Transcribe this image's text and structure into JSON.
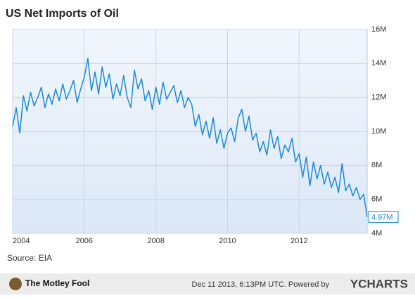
{
  "chart_data": {
    "type": "line",
    "title": "US Net Imports of Oil",
    "source": "Source: EIA",
    "footer": "Dec 11 2013, 6:13PM UTC. Powered by",
    "brand": "YCHARTS",
    "logo": "The Motley Fool",
    "color": "#1a8ad4",
    "grid": true,
    "x": [
      2004.0,
      2004.1,
      2004.2,
      2004.3,
      2004.4,
      2004.5,
      2004.6,
      2004.7,
      2004.8,
      2004.9,
      2005.0,
      2005.1,
      2005.2,
      2005.3,
      2005.4,
      2005.5,
      2005.6,
      2005.7,
      2005.8,
      2005.9,
      2006.0,
      2006.1,
      2006.2,
      2006.3,
      2006.4,
      2006.5,
      2006.6,
      2006.7,
      2006.8,
      2006.9,
      2007.0,
      2007.1,
      2007.2,
      2007.3,
      2007.4,
      2007.5,
      2007.6,
      2007.7,
      2007.8,
      2007.9,
      2008.0,
      2008.1,
      2008.2,
      2008.3,
      2008.4,
      2008.5,
      2008.6,
      2008.7,
      2008.8,
      2008.9,
      2009.0,
      2009.1,
      2009.2,
      2009.3,
      2009.4,
      2009.5,
      2009.6,
      2009.7,
      2009.8,
      2009.9,
      2010.0,
      2010.1,
      2010.2,
      2010.3,
      2010.4,
      2010.5,
      2010.6,
      2010.7,
      2010.8,
      2010.9,
      2011.0,
      2011.1,
      2011.2,
      2011.3,
      2011.4,
      2011.5,
      2011.6,
      2011.7,
      2011.8,
      2011.9,
      2012.0,
      2012.1,
      2012.2,
      2012.3,
      2012.4,
      2012.5,
      2012.6,
      2012.7,
      2012.8,
      2012.9,
      2013.0,
      2013.1,
      2013.2,
      2013.3,
      2013.4,
      2013.5,
      2013.6,
      2013.7,
      2013.8,
      2013.9
    ],
    "values": [
      10.3,
      11.4,
      9.9,
      12.1,
      11.2,
      12.3,
      11.5,
      12.0,
      12.6,
      11.4,
      12.2,
      11.6,
      12.5,
      11.8,
      12.8,
      11.9,
      12.4,
      13.0,
      11.7,
      12.5,
      13.2,
      14.3,
      12.4,
      13.5,
      12.2,
      13.8,
      12.6,
      13.4,
      11.9,
      12.8,
      12.1,
      13.3,
      12.0,
      11.4,
      13.6,
      12.5,
      13.1,
      11.8,
      12.4,
      11.3,
      12.6,
      11.6,
      12.9,
      11.9,
      12.3,
      12.7,
      11.7,
      12.4,
      11.4,
      12.0,
      11.6,
      10.3,
      11.0,
      9.8,
      10.6,
      9.6,
      10.8,
      9.3,
      10.1,
      9.0,
      9.9,
      10.2,
      9.4,
      10.8,
      11.3,
      10.0,
      10.9,
      9.5,
      9.9,
      8.8,
      9.4,
      8.6,
      10.1,
      9.0,
      9.7,
      8.4,
      9.2,
      8.8,
      9.6,
      8.2,
      8.7,
      7.3,
      8.5,
      6.8,
      8.2,
      7.2,
      8.0,
      6.9,
      7.6,
      6.7,
      7.3,
      6.4,
      8.1,
      6.5,
      6.9,
      6.2,
      6.7,
      6.0,
      6.3,
      4.97
    ],
    "last_value": {
      "value": 4.97,
      "label": "4.97M"
    },
    "xlim": [
      2004,
      2013.9
    ],
    "xticks": [
      2004,
      2006,
      2008,
      2010,
      2012
    ],
    "ylim": [
      4,
      16
    ],
    "yticks": [
      {
        "value": 4,
        "label": "4M"
      },
      {
        "value": 6,
        "label": "6M"
      },
      {
        "value": 8,
        "label": "8M"
      },
      {
        "value": 10,
        "label": "10M"
      },
      {
        "value": 12,
        "label": "12M"
      },
      {
        "value": 14,
        "label": "14M"
      },
      {
        "value": 16,
        "label": "16M"
      }
    ]
  }
}
